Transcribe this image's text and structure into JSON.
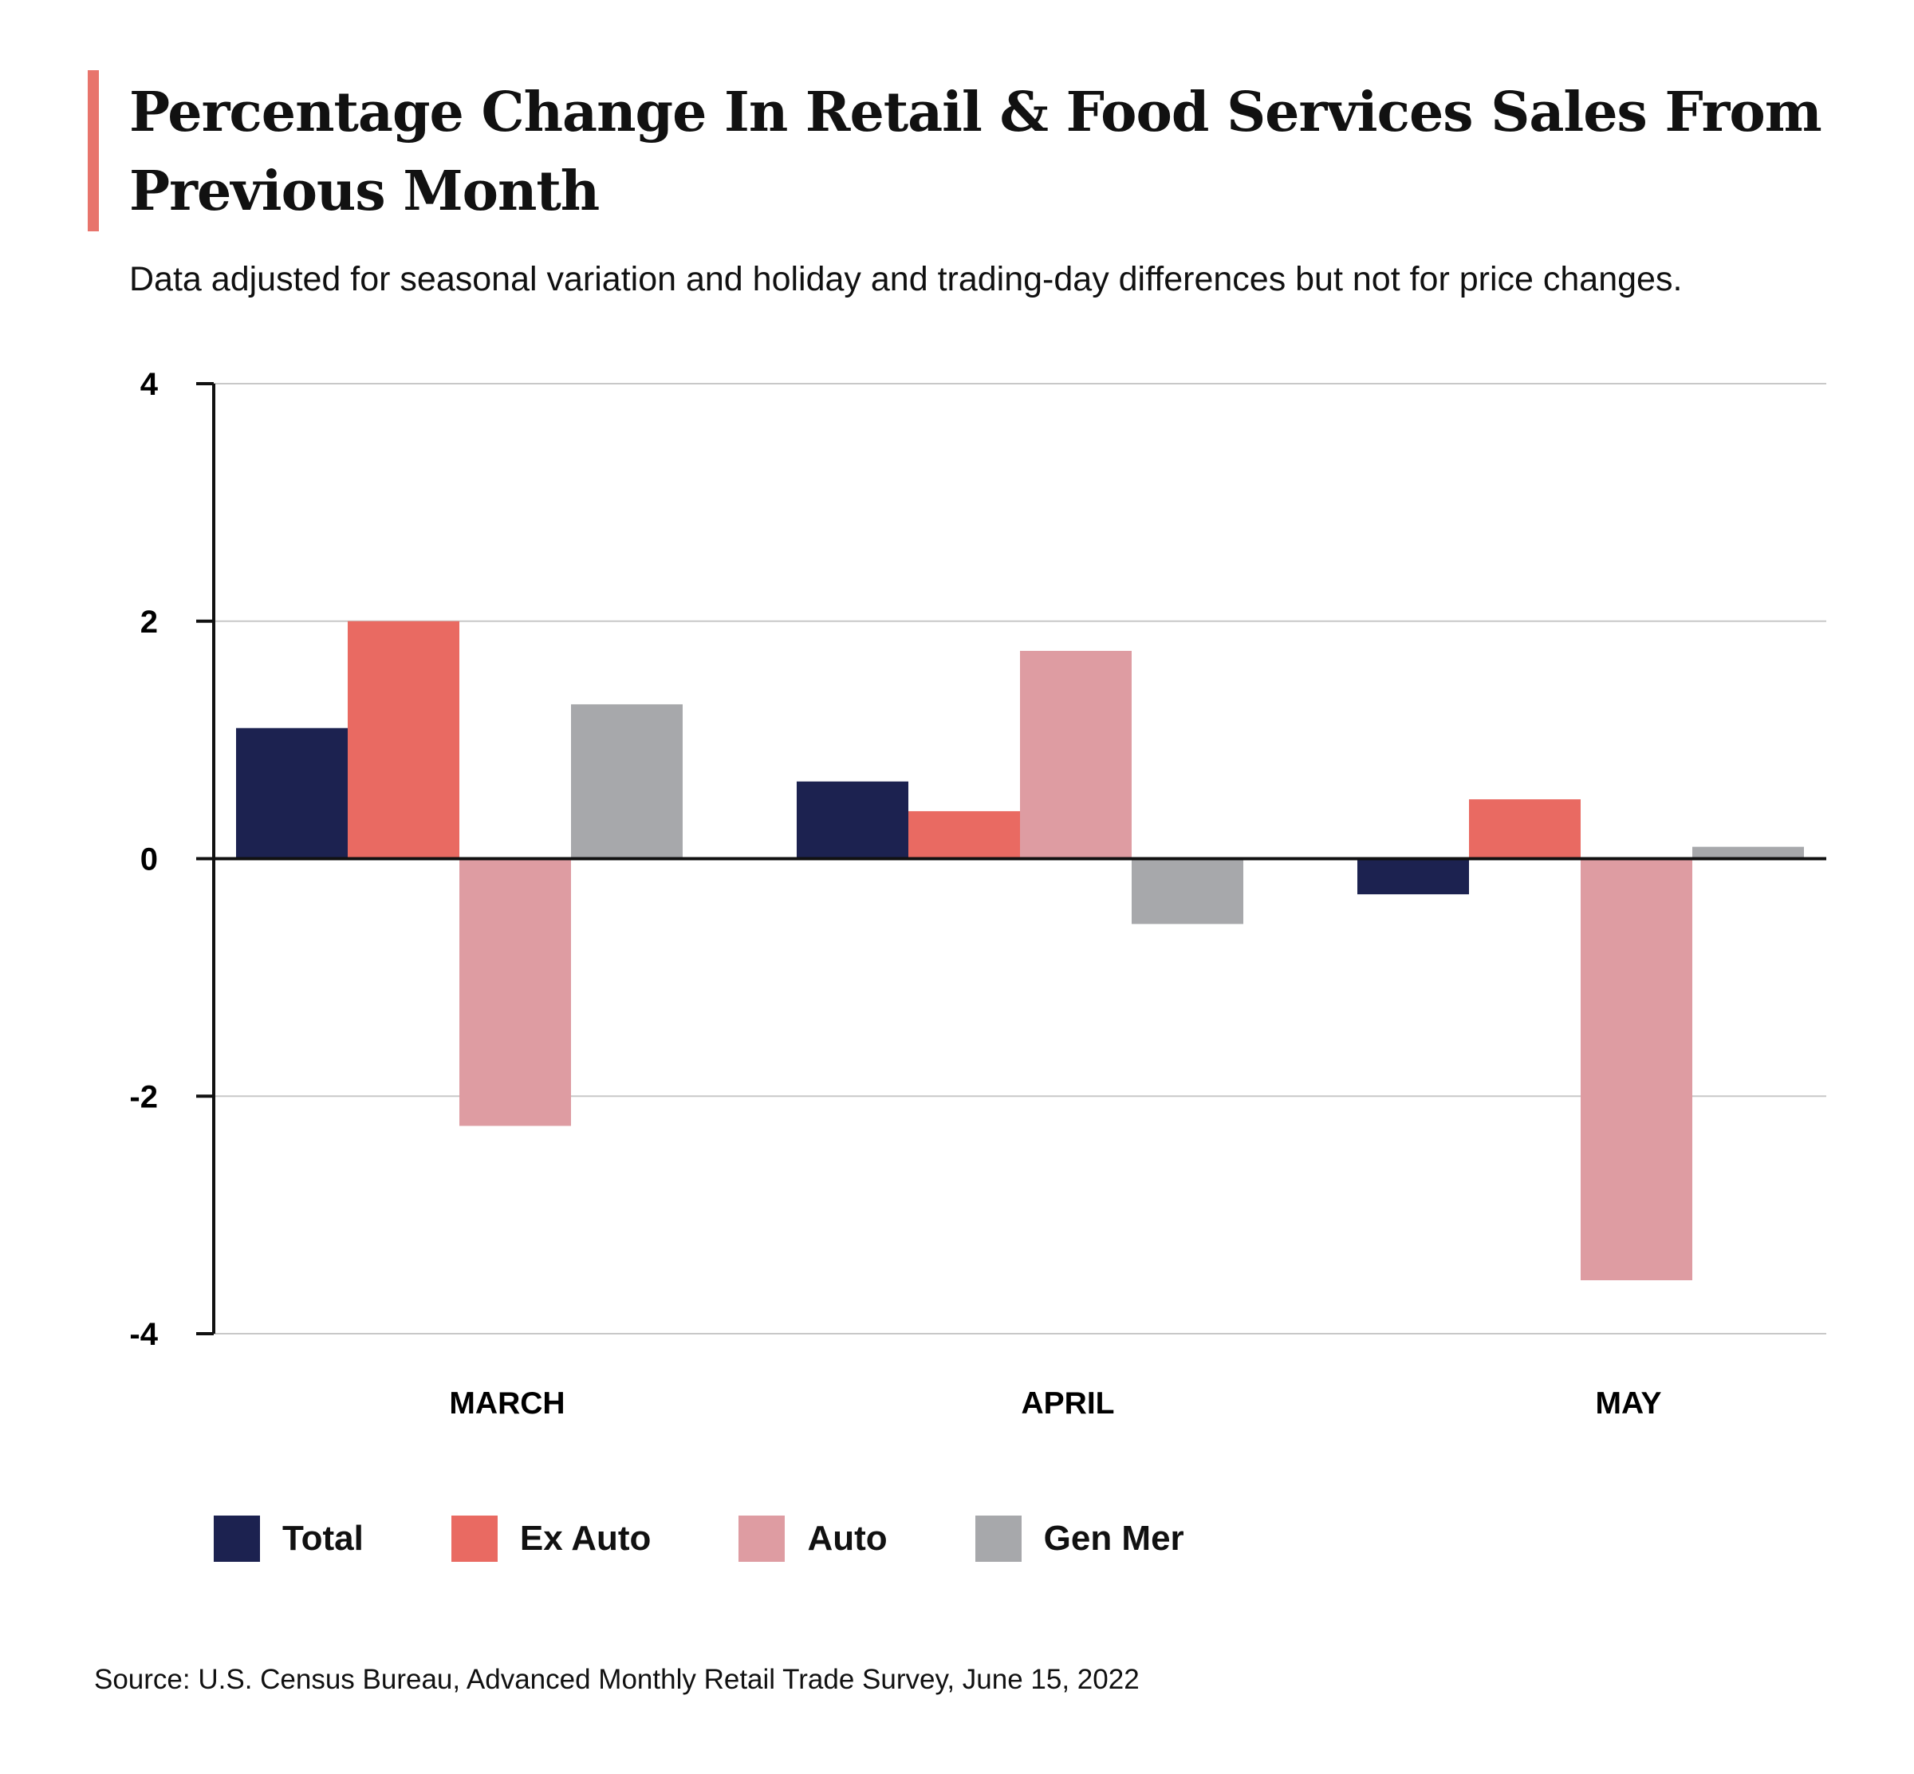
{
  "header": {
    "title": "Percentage Change In Retail & Food Services Sales From Previous Month",
    "subtitle": "Data adjusted for seasonal variation and holiday and trading-day differences but not for price changes."
  },
  "footer": {
    "source": "Source: U.S. Census Bureau, Advanced Monthly Retail Trade Survey, June 15, 2022"
  },
  "colors": {
    "accent": "#e8746c",
    "axis": "#111111",
    "grid": "#c8c8c8"
  },
  "chart_data": {
    "type": "bar",
    "title": "Percentage Change In Retail & Food Services Sales From Previous Month",
    "xlabel": "",
    "ylabel": "",
    "ylim": [
      -4,
      4
    ],
    "yticks": [
      4,
      2,
      0,
      -2,
      -4
    ],
    "ytick_labels": [
      "4",
      "2",
      "0",
      "-2",
      "-4"
    ],
    "grid": true,
    "legend_position": "bottom-left",
    "categories": [
      "MARCH",
      "APRIL",
      "MAY"
    ],
    "series": [
      {
        "name": "Total",
        "color": "#1c2250",
        "values": [
          1.1,
          0.65,
          -0.3
        ]
      },
      {
        "name": "Ex Auto",
        "color": "#e96a62",
        "values": [
          2.0,
          0.4,
          0.5
        ]
      },
      {
        "name": "Auto",
        "color": "#de9ca2",
        "values": [
          -2.25,
          1.75,
          -3.55
        ]
      },
      {
        "name": "Gen Mer",
        "color": "#a7a8ab",
        "values": [
          1.3,
          -0.55,
          0.1
        ]
      }
    ]
  }
}
